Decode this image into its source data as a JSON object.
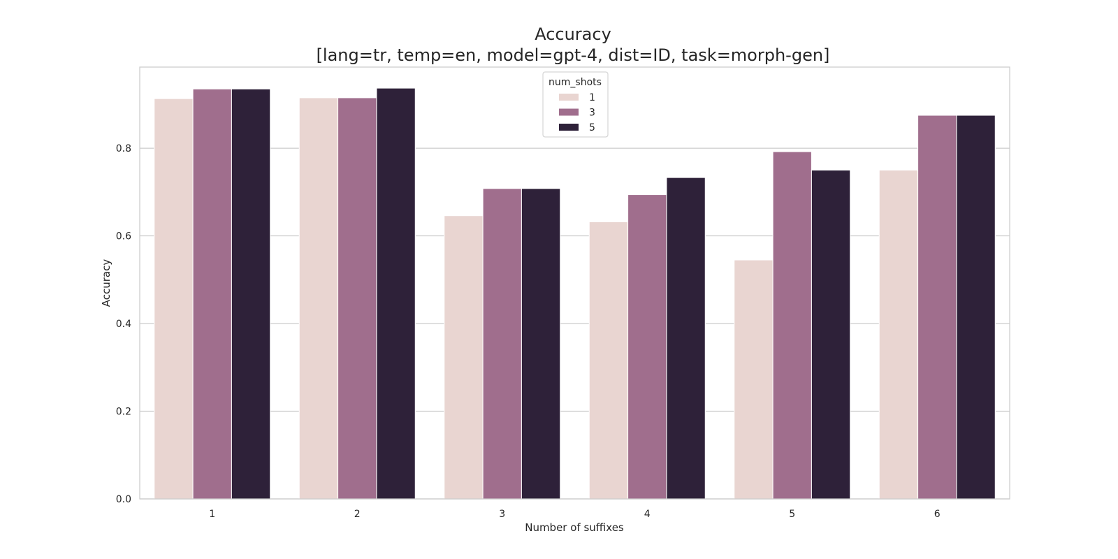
{
  "chart_data": {
    "type": "bar",
    "title": "Accuracy",
    "subtitle": "[lang=tr, temp=en, model=gpt-4, dist=ID, task=morph-gen]",
    "xlabel": "Number of suffixes",
    "ylabel": "Accuracy",
    "categories": [
      "1",
      "2",
      "3",
      "4",
      "5",
      "6"
    ],
    "ylim": [
      0,
      0.985
    ],
    "yticks": [
      0.0,
      0.2,
      0.4,
      0.6,
      0.8
    ],
    "ytick_labels": [
      "0.0",
      "0.2",
      "0.4",
      "0.6",
      "0.8"
    ],
    "grid": "horizontal",
    "legend": {
      "title": "num_shots",
      "placement": "top-center"
    },
    "series": [
      {
        "name": "1",
        "color": "#e9d5d1",
        "values": [
          0.913,
          0.915,
          0.646,
          0.632,
          0.545,
          0.75
        ]
      },
      {
        "name": "3",
        "color": "#a06e8d",
        "values": [
          0.935,
          0.915,
          0.708,
          0.694,
          0.792,
          0.875
        ]
      },
      {
        "name": "5",
        "color": "#2e2139",
        "values": [
          0.935,
          0.937,
          0.708,
          0.733,
          0.75,
          0.875
        ]
      }
    ]
  }
}
